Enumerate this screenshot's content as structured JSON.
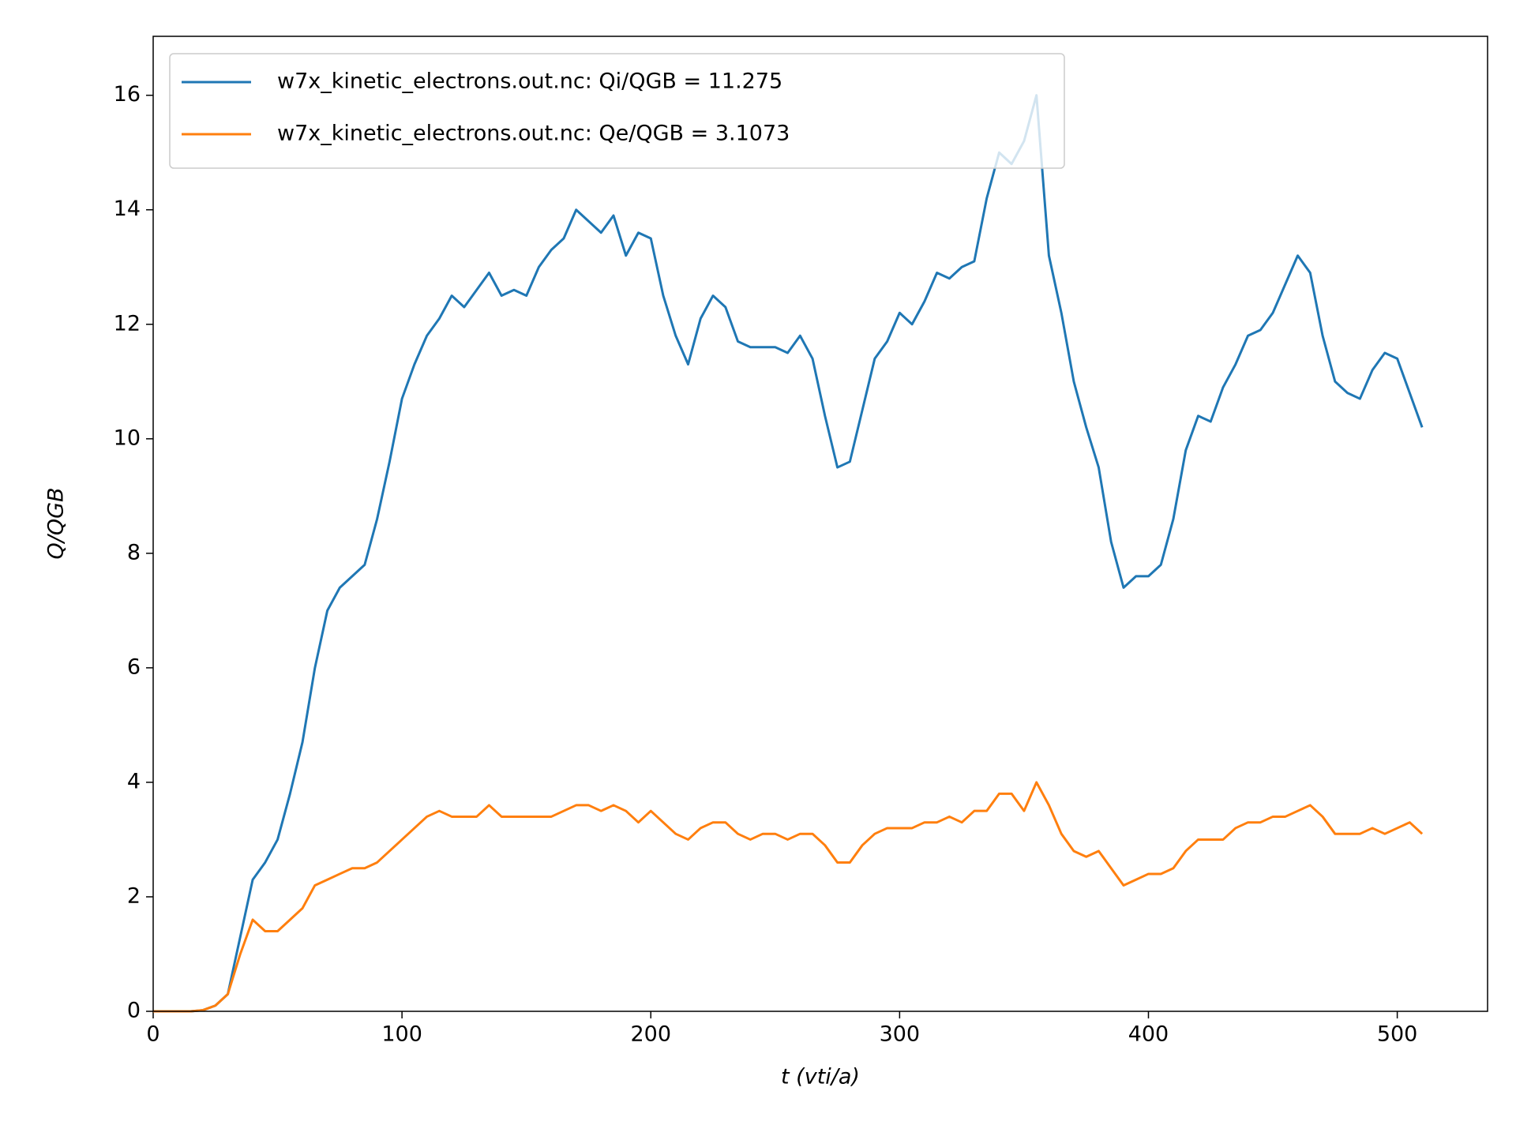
{
  "chart_data": {
    "type": "line",
    "xlabel": "t (vti/a)",
    "ylabel": "Q/QGB",
    "x": [
      0,
      5,
      10,
      15,
      20,
      25,
      30,
      35,
      40,
      45,
      50,
      55,
      60,
      65,
      70,
      75,
      80,
      85,
      90,
      95,
      100,
      105,
      110,
      115,
      120,
      125,
      130,
      135,
      140,
      145,
      150,
      155,
      160,
      165,
      170,
      175,
      180,
      185,
      190,
      195,
      200,
      205,
      210,
      215,
      220,
      225,
      230,
      235,
      240,
      245,
      250,
      255,
      260,
      265,
      270,
      275,
      280,
      285,
      290,
      295,
      300,
      305,
      310,
      315,
      320,
      325,
      330,
      335,
      340,
      345,
      350,
      355,
      360,
      365,
      370,
      375,
      380,
      385,
      390,
      395,
      400,
      405,
      410,
      415,
      420,
      425,
      430,
      435,
      440,
      445,
      450,
      455,
      460,
      465,
      470,
      475,
      480,
      485,
      490,
      495,
      500,
      505,
      510
    ],
    "series": [
      {
        "name": "w7x_kinetic_electrons.out.nc: Qi/QGB = 11.275",
        "color": "#1f77b4",
        "values": [
          0,
          0,
          0,
          0,
          0.02,
          0.1,
          0.3,
          1.3,
          2.3,
          2.6,
          3.0,
          3.8,
          4.7,
          6.0,
          7.0,
          7.4,
          7.6,
          7.8,
          8.6,
          9.6,
          10.7,
          11.3,
          11.8,
          12.1,
          12.5,
          12.3,
          12.6,
          12.9,
          12.5,
          12.6,
          12.5,
          13.0,
          13.3,
          13.5,
          14.0,
          13.8,
          13.6,
          13.9,
          13.2,
          13.6,
          13.5,
          12.5,
          11.8,
          11.3,
          12.1,
          12.5,
          12.3,
          11.7,
          11.6,
          11.6,
          11.6,
          11.5,
          11.8,
          11.4,
          10.4,
          9.5,
          9.6,
          10.5,
          11.4,
          11.7,
          12.2,
          12.0,
          12.4,
          12.9,
          12.8,
          13.0,
          13.1,
          14.2,
          15.0,
          14.8,
          15.2,
          16.0,
          13.2,
          12.2,
          11.0,
          10.2,
          9.5,
          8.2,
          7.4,
          7.6,
          7.6,
          7.8,
          8.6,
          9.8,
          10.4,
          10.3,
          10.9,
          11.3,
          11.8,
          11.9,
          12.2,
          12.7,
          13.2,
          12.9,
          11.8,
          11.0,
          10.8,
          10.7,
          11.2,
          11.5,
          11.4,
          10.8,
          10.2
        ]
      },
      {
        "name": "w7x_kinetic_electrons.out.nc: Qe/QGB = 3.1073",
        "color": "#ff7f0e",
        "values": [
          0,
          0,
          0,
          0,
          0.02,
          0.1,
          0.3,
          1.0,
          1.6,
          1.4,
          1.4,
          1.6,
          1.8,
          2.2,
          2.3,
          2.4,
          2.5,
          2.5,
          2.6,
          2.8,
          3.0,
          3.2,
          3.4,
          3.5,
          3.4,
          3.4,
          3.4,
          3.6,
          3.4,
          3.4,
          3.4,
          3.4,
          3.4,
          3.5,
          3.6,
          3.6,
          3.5,
          3.6,
          3.5,
          3.3,
          3.5,
          3.3,
          3.1,
          3.0,
          3.2,
          3.3,
          3.3,
          3.1,
          3.0,
          3.1,
          3.1,
          3.0,
          3.1,
          3.1,
          2.9,
          2.6,
          2.6,
          2.9,
          3.1,
          3.2,
          3.2,
          3.2,
          3.3,
          3.3,
          3.4,
          3.3,
          3.5,
          3.5,
          3.8,
          3.8,
          3.5,
          4.0,
          3.6,
          3.1,
          2.8,
          2.7,
          2.8,
          2.5,
          2.2,
          2.3,
          2.4,
          2.4,
          2.5,
          2.8,
          3.0,
          3.0,
          3.0,
          3.2,
          3.3,
          3.3,
          3.4,
          3.4,
          3.5,
          3.6,
          3.4,
          3.1,
          3.1,
          3.1,
          3.2,
          3.1,
          3.2,
          3.3,
          3.1
        ]
      }
    ],
    "xlim": [
      0,
      536.3
    ],
    "xticks": [
      0,
      100,
      200,
      300,
      400,
      500
    ],
    "ylim": [
      0,
      17.03
    ],
    "yticks": [
      0,
      2,
      4,
      6,
      8,
      10,
      12,
      14,
      16
    ],
    "legend": "upper-left"
  }
}
